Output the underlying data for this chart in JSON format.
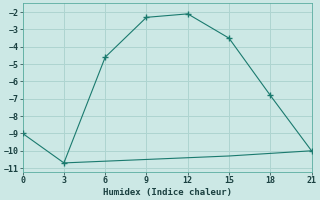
{
  "line1_x": [
    0,
    3,
    6,
    9,
    12,
    15,
    18,
    21
  ],
  "line1_y": [
    -9.0,
    -10.7,
    -4.6,
    -2.3,
    -2.1,
    -3.5,
    -6.8,
    -10.0
  ],
  "line2_x": [
    3,
    6,
    9,
    12,
    15,
    18,
    21
  ],
  "line2_y": [
    -10.7,
    -10.6,
    -10.5,
    -10.4,
    -10.3,
    -10.15,
    -10.0
  ],
  "line_color": "#1a7a6e",
  "bg_color": "#cce8e5",
  "grid_color": "#aed4d0",
  "xlabel": "Humidex (Indice chaleur)",
  "xlim": [
    0,
    21
  ],
  "ylim": [
    -11.2,
    -1.5
  ],
  "xticks": [
    0,
    3,
    6,
    9,
    12,
    15,
    18,
    21
  ],
  "yticks": [
    -2,
    -3,
    -4,
    -5,
    -6,
    -7,
    -8,
    -9,
    -10,
    -11
  ]
}
